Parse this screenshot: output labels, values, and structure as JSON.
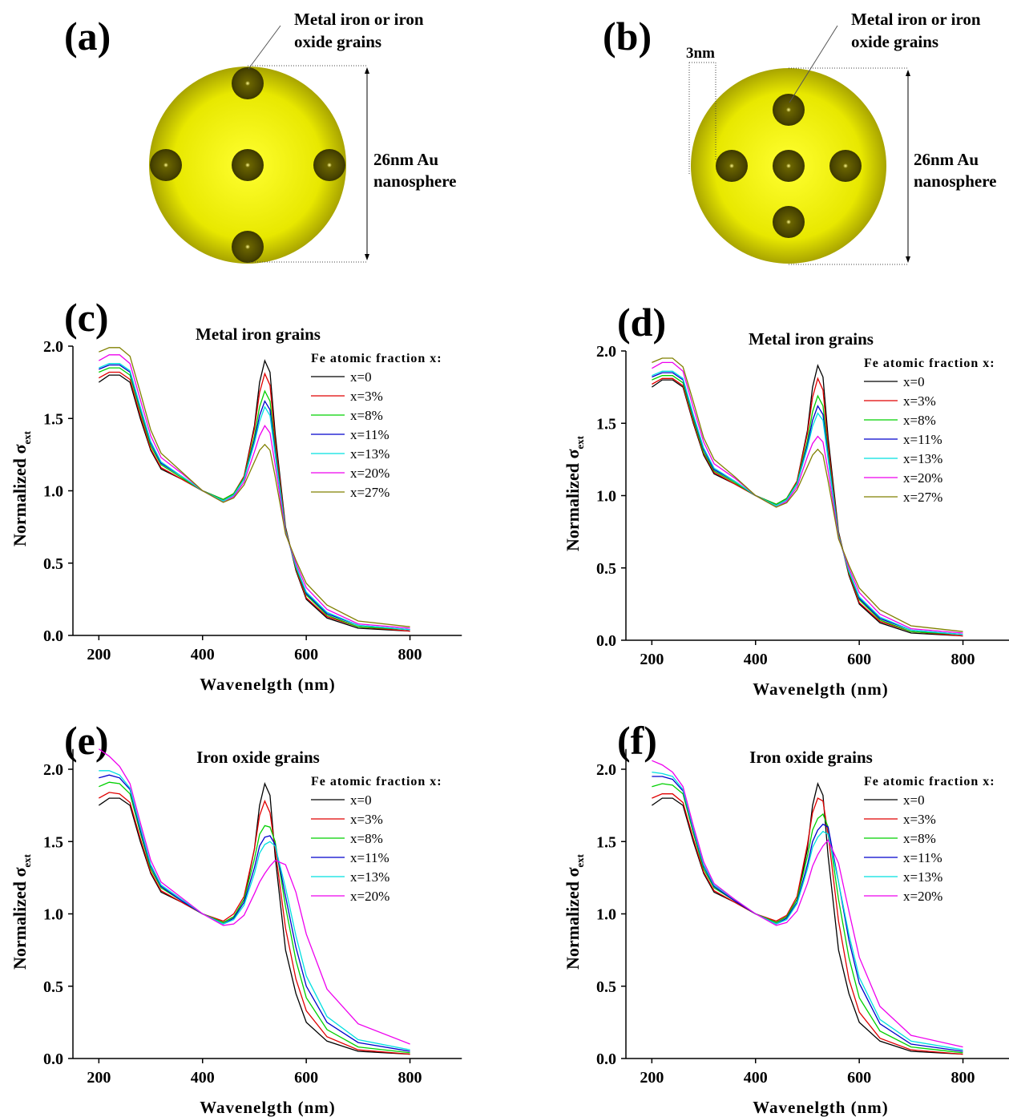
{
  "diagrams": [
    {
      "label": "(a)",
      "annotation": [
        "Metal iron or iron",
        "oxide grains"
      ],
      "size_label": [
        "26nm Au",
        "nanosphere"
      ]
    },
    {
      "label": "(b)",
      "annotation": [
        "Metal iron or iron",
        "oxide grains"
      ],
      "size_label": [
        "26nm Au",
        "nanosphere"
      ],
      "offset_label": "3nm"
    }
  ],
  "chart_data": [
    {
      "type": "line",
      "label": "(c)",
      "title": "Metal iron grains",
      "xlabel": "Wavenelgth (nm)",
      "ylabel": "Normalized σ",
      "ylabel_subscript": "ext",
      "legend_title": "Fe atomic fraction x:",
      "xlim": [
        150,
        900
      ],
      "ylim": [
        0,
        2
      ],
      "xticks": [
        200,
        400,
        600,
        800
      ],
      "yticks": [
        {
          "value": 0,
          "label": "0.0"
        },
        0.5,
        {
          "value": 1,
          "label": "1.0"
        },
        1.5,
        {
          "value": 2,
          "label": "2.0"
        }
      ],
      "x": [
        200,
        220,
        240,
        260,
        280,
        300,
        320,
        360,
        400,
        440,
        460,
        480,
        500,
        510,
        520,
        530,
        540,
        560,
        580,
        600,
        640,
        700,
        800
      ],
      "series": [
        {
          "name": "x=0",
          "color": "#000000",
          "values": [
            1.75,
            1.8,
            1.8,
            1.75,
            1.5,
            1.28,
            1.15,
            1.08,
            1.0,
            0.94,
            0.98,
            1.1,
            1.45,
            1.75,
            1.9,
            1.82,
            1.4,
            0.75,
            0.45,
            0.25,
            0.12,
            0.05,
            0.03
          ]
        },
        {
          "name": "x=3%",
          "color": "#e00000",
          "values": [
            1.78,
            1.82,
            1.82,
            1.77,
            1.52,
            1.29,
            1.16,
            1.08,
            1.0,
            0.94,
            0.98,
            1.1,
            1.43,
            1.68,
            1.81,
            1.73,
            1.35,
            0.74,
            0.46,
            0.26,
            0.13,
            0.06,
            0.03
          ]
        },
        {
          "name": "x=8%",
          "color": "#00d000",
          "values": [
            1.82,
            1.85,
            1.85,
            1.8,
            1.55,
            1.31,
            1.18,
            1.09,
            1.0,
            0.94,
            0.98,
            1.09,
            1.38,
            1.58,
            1.69,
            1.62,
            1.3,
            0.73,
            0.47,
            0.28,
            0.14,
            0.06,
            0.04
          ]
        },
        {
          "name": "x=11%",
          "color": "#0000cc",
          "values": [
            1.84,
            1.87,
            1.87,
            1.82,
            1.57,
            1.33,
            1.19,
            1.1,
            1.0,
            0.93,
            0.97,
            1.08,
            1.35,
            1.52,
            1.62,
            1.56,
            1.27,
            0.72,
            0.48,
            0.29,
            0.15,
            0.07,
            0.04
          ]
        },
        {
          "name": "x=13%",
          "color": "#00e0e0",
          "values": [
            1.85,
            1.88,
            1.88,
            1.83,
            1.58,
            1.34,
            1.2,
            1.1,
            1.0,
            0.93,
            0.97,
            1.08,
            1.33,
            1.48,
            1.58,
            1.52,
            1.25,
            0.72,
            0.48,
            0.3,
            0.16,
            0.07,
            0.04
          ]
        },
        {
          "name": "x=20%",
          "color": "#ee00ee",
          "values": [
            1.9,
            1.94,
            1.94,
            1.88,
            1.63,
            1.38,
            1.23,
            1.12,
            1.0,
            0.92,
            0.96,
            1.06,
            1.27,
            1.38,
            1.45,
            1.4,
            1.18,
            0.71,
            0.5,
            0.33,
            0.18,
            0.08,
            0.05
          ]
        },
        {
          "name": "x=27%",
          "color": "#808000",
          "values": [
            1.96,
            1.99,
            1.99,
            1.93,
            1.68,
            1.42,
            1.26,
            1.13,
            1.0,
            0.92,
            0.95,
            1.04,
            1.2,
            1.28,
            1.32,
            1.28,
            1.1,
            0.7,
            0.52,
            0.36,
            0.21,
            0.1,
            0.06
          ]
        }
      ]
    },
    {
      "type": "line",
      "label": "(d)",
      "title": "Metal iron grains",
      "xlabel": "Wavenelgth (nm)",
      "ylabel": "Normalized σ",
      "ylabel_subscript": "ext",
      "legend_title": "Fe atomic fraction x:",
      "xlim": [
        150,
        900
      ],
      "ylim": [
        0,
        2
      ],
      "xticks": [
        200,
        400,
        600,
        800
      ],
      "yticks": [
        {
          "value": 0,
          "label": "0.0"
        },
        0.5,
        {
          "value": 1,
          "label": "1.0"
        },
        1.5,
        {
          "value": 2,
          "label": "2.0"
        }
      ],
      "x": [
        200,
        220,
        240,
        260,
        280,
        300,
        320,
        360,
        400,
        440,
        460,
        480,
        500,
        510,
        520,
        530,
        540,
        560,
        580,
        600,
        640,
        700,
        800
      ],
      "series": [
        {
          "name": "x=0",
          "color": "#000000",
          "values": [
            1.75,
            1.8,
            1.8,
            1.75,
            1.5,
            1.28,
            1.15,
            1.08,
            1.0,
            0.94,
            0.98,
            1.1,
            1.45,
            1.75,
            1.9,
            1.82,
            1.4,
            0.75,
            0.45,
            0.25,
            0.12,
            0.05,
            0.03
          ]
        },
        {
          "name": "x=3%",
          "color": "#e00000",
          "values": [
            1.77,
            1.81,
            1.81,
            1.76,
            1.51,
            1.29,
            1.16,
            1.08,
            1.0,
            0.94,
            0.98,
            1.1,
            1.43,
            1.68,
            1.81,
            1.73,
            1.35,
            0.74,
            0.46,
            0.26,
            0.13,
            0.06,
            0.03
          ]
        },
        {
          "name": "x=8%",
          "color": "#00d000",
          "values": [
            1.8,
            1.83,
            1.83,
            1.78,
            1.53,
            1.3,
            1.17,
            1.09,
            1.0,
            0.94,
            0.98,
            1.09,
            1.38,
            1.58,
            1.69,
            1.62,
            1.3,
            0.73,
            0.47,
            0.28,
            0.14,
            0.06,
            0.04
          ]
        },
        {
          "name": "x=11%",
          "color": "#0000cc",
          "values": [
            1.82,
            1.85,
            1.85,
            1.8,
            1.55,
            1.32,
            1.18,
            1.1,
            1.0,
            0.93,
            0.97,
            1.08,
            1.35,
            1.52,
            1.62,
            1.56,
            1.27,
            0.72,
            0.48,
            0.29,
            0.15,
            0.07,
            0.04
          ]
        },
        {
          "name": "x=13%",
          "color": "#00e0e0",
          "values": [
            1.83,
            1.86,
            1.86,
            1.81,
            1.56,
            1.33,
            1.19,
            1.1,
            1.0,
            0.93,
            0.97,
            1.08,
            1.33,
            1.48,
            1.57,
            1.52,
            1.25,
            0.72,
            0.48,
            0.3,
            0.16,
            0.07,
            0.04
          ]
        },
        {
          "name": "x=20%",
          "color": "#ee00ee",
          "values": [
            1.88,
            1.92,
            1.92,
            1.86,
            1.61,
            1.37,
            1.22,
            1.12,
            1.0,
            0.92,
            0.96,
            1.06,
            1.27,
            1.36,
            1.41,
            1.37,
            1.17,
            0.71,
            0.5,
            0.33,
            0.18,
            0.08,
            0.05
          ]
        },
        {
          "name": "x=27%",
          "color": "#808000",
          "values": [
            1.92,
            1.95,
            1.95,
            1.89,
            1.65,
            1.4,
            1.25,
            1.13,
            1.0,
            0.92,
            0.95,
            1.04,
            1.2,
            1.28,
            1.32,
            1.28,
            1.1,
            0.7,
            0.52,
            0.36,
            0.21,
            0.1,
            0.06
          ]
        }
      ]
    },
    {
      "type": "line",
      "label": "(e)",
      "title": "Iron oxide grains",
      "xlabel": "Wavenelgth (nm)",
      "ylabel": "Normalized σ",
      "ylabel_subscript": "ext",
      "legend_title": "Fe atomic fraction x:",
      "xlim": [
        150,
        900
      ],
      "ylim": [
        0,
        2.14
      ],
      "xticks": [
        200,
        400,
        600,
        800
      ],
      "yticks": [
        {
          "value": 0,
          "label": "0.0"
        },
        0.5,
        {
          "value": 1,
          "label": "1.0"
        },
        1.5,
        {
          "value": 2,
          "label": "2.0"
        }
      ],
      "x": [
        200,
        220,
        240,
        260,
        280,
        300,
        320,
        360,
        400,
        440,
        460,
        480,
        500,
        510,
        520,
        530,
        540,
        560,
        580,
        600,
        640,
        700,
        800
      ],
      "series": [
        {
          "name": "x=0",
          "color": "#000000",
          "values": [
            1.75,
            1.8,
            1.8,
            1.75,
            1.5,
            1.28,
            1.15,
            1.08,
            1.0,
            0.94,
            0.98,
            1.1,
            1.45,
            1.75,
            1.9,
            1.82,
            1.4,
            0.75,
            0.45,
            0.25,
            0.12,
            0.05,
            0.03
          ]
        },
        {
          "name": "x=3%",
          "color": "#e00000",
          "values": [
            1.8,
            1.84,
            1.83,
            1.77,
            1.52,
            1.29,
            1.16,
            1.08,
            1.0,
            0.95,
            1.0,
            1.12,
            1.45,
            1.68,
            1.78,
            1.7,
            1.45,
            0.9,
            0.55,
            0.33,
            0.15,
            0.06,
            0.03
          ]
        },
        {
          "name": "x=8%",
          "color": "#00d000",
          "values": [
            1.88,
            1.91,
            1.9,
            1.83,
            1.56,
            1.31,
            1.18,
            1.09,
            1.0,
            0.94,
            0.98,
            1.1,
            1.38,
            1.55,
            1.61,
            1.6,
            1.5,
            1.05,
            0.68,
            0.42,
            0.2,
            0.08,
            0.04
          ]
        },
        {
          "name": "x=11%",
          "color": "#0000cc",
          "values": [
            1.94,
            1.96,
            1.94,
            1.86,
            1.58,
            1.33,
            1.19,
            1.09,
            1.0,
            0.93,
            0.97,
            1.08,
            1.32,
            1.47,
            1.53,
            1.54,
            1.48,
            1.12,
            0.77,
            0.5,
            0.25,
            0.11,
            0.05
          ]
        },
        {
          "name": "x=13%",
          "color": "#00e0e0",
          "values": [
            1.99,
            1.99,
            1.96,
            1.87,
            1.6,
            1.34,
            1.2,
            1.1,
            1.0,
            0.93,
            0.96,
            1.06,
            1.28,
            1.42,
            1.48,
            1.5,
            1.47,
            1.18,
            0.85,
            0.57,
            0.29,
            0.13,
            0.06
          ]
        },
        {
          "name": "x=20%",
          "color": "#ee00ee",
          "values": [
            2.14,
            2.09,
            2.02,
            1.9,
            1.63,
            1.37,
            1.22,
            1.11,
            1.0,
            0.92,
            0.93,
            0.99,
            1.14,
            1.22,
            1.28,
            1.33,
            1.37,
            1.34,
            1.15,
            0.86,
            0.48,
            0.24,
            0.1
          ]
        }
      ]
    },
    {
      "type": "line",
      "label": "(f)",
      "title": "Iron oxide grains",
      "xlabel": "Wavenelgth (nm)",
      "ylabel": "Normalized σ",
      "ylabel_subscript": "ext",
      "legend_title": "Fe atomic fraction x:",
      "xlim": [
        150,
        900
      ],
      "ylim": [
        0,
        2.14
      ],
      "xticks": [
        200,
        400,
        600,
        800
      ],
      "yticks": [
        {
          "value": 0,
          "label": "0.0"
        },
        0.5,
        {
          "value": 1,
          "label": "1.0"
        },
        1.5,
        {
          "value": 2,
          "label": "2.0"
        }
      ],
      "x": [
        200,
        220,
        240,
        260,
        280,
        300,
        320,
        360,
        400,
        440,
        460,
        480,
        500,
        510,
        520,
        530,
        540,
        560,
        580,
        600,
        640,
        700,
        800
      ],
      "series": [
        {
          "name": "x=0",
          "color": "#000000",
          "values": [
            1.75,
            1.8,
            1.8,
            1.75,
            1.5,
            1.28,
            1.15,
            1.08,
            1.0,
            0.94,
            0.98,
            1.1,
            1.45,
            1.75,
            1.9,
            1.82,
            1.4,
            0.75,
            0.45,
            0.25,
            0.12,
            0.05,
            0.03
          ]
        },
        {
          "name": "x=3%",
          "color": "#e00000",
          "values": [
            1.8,
            1.83,
            1.83,
            1.77,
            1.52,
            1.29,
            1.16,
            1.08,
            1.0,
            0.95,
            0.99,
            1.12,
            1.48,
            1.7,
            1.8,
            1.78,
            1.55,
            0.95,
            0.55,
            0.32,
            0.14,
            0.06,
            0.03
          ]
        },
        {
          "name": "x=8%",
          "color": "#00d000",
          "values": [
            1.88,
            1.9,
            1.89,
            1.83,
            1.56,
            1.31,
            1.18,
            1.09,
            1.0,
            0.94,
            0.98,
            1.1,
            1.4,
            1.58,
            1.66,
            1.69,
            1.6,
            1.1,
            0.7,
            0.42,
            0.19,
            0.08,
            0.04
          ]
        },
        {
          "name": "x=11%",
          "color": "#0000cc",
          "values": [
            1.95,
            1.95,
            1.93,
            1.85,
            1.58,
            1.33,
            1.19,
            1.09,
            1.0,
            0.93,
            0.97,
            1.08,
            1.34,
            1.5,
            1.58,
            1.62,
            1.6,
            1.22,
            0.82,
            0.52,
            0.24,
            0.1,
            0.05
          ]
        },
        {
          "name": "x=13%",
          "color": "#00e0e0",
          "values": [
            1.98,
            1.97,
            1.95,
            1.86,
            1.59,
            1.34,
            1.2,
            1.1,
            1.0,
            0.93,
            0.96,
            1.07,
            1.31,
            1.46,
            1.53,
            1.57,
            1.55,
            1.22,
            0.86,
            0.56,
            0.27,
            0.12,
            0.06
          ]
        },
        {
          "name": "x=20%",
          "color": "#ee00ee",
          "values": [
            2.06,
            2.03,
            1.98,
            1.88,
            1.61,
            1.36,
            1.21,
            1.1,
            1.0,
            0.92,
            0.94,
            1.02,
            1.21,
            1.33,
            1.41,
            1.47,
            1.51,
            1.35,
            1.02,
            0.7,
            0.36,
            0.16,
            0.08
          ]
        }
      ]
    }
  ]
}
